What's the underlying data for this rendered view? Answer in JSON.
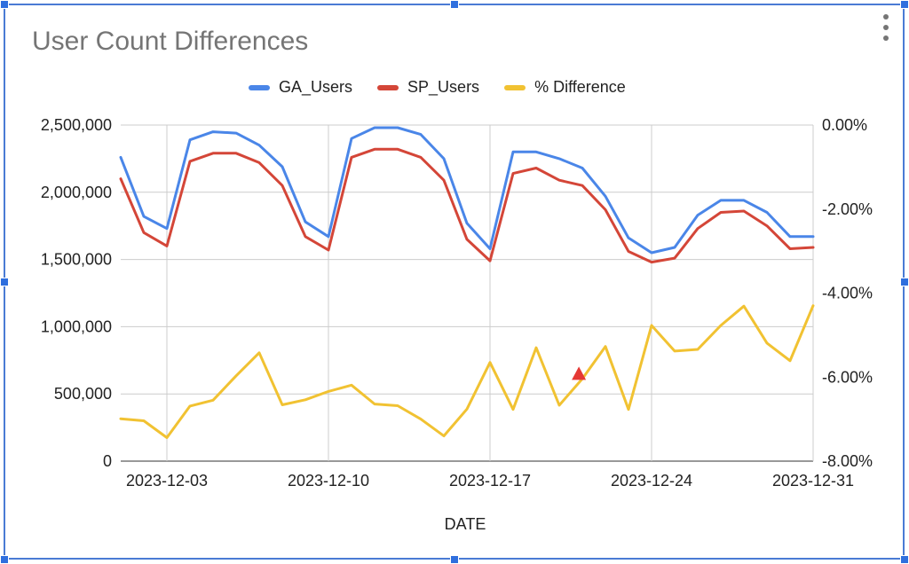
{
  "chart_data": {
    "type": "line",
    "title": "User Count Differences",
    "xlabel": "DATE",
    "ylabel_left": "",
    "ylabel_right": "",
    "ylim": [
      0,
      2500000
    ],
    "y2lim": [
      -8.0,
      0.0
    ],
    "xlim": [
      1,
      31
    ],
    "left_ticks": [
      "0",
      "500,000",
      "1,000,000",
      "1,500,000",
      "2,000,000",
      "2,500,000"
    ],
    "left_tick_values": [
      0,
      500000,
      1000000,
      1500000,
      2000000,
      2500000
    ],
    "right_ticks": [
      "0.00%",
      "-2.00%",
      "-4.00%",
      "-6.00%",
      "-8.00%"
    ],
    "right_tick_values": [
      0,
      -2,
      -4,
      -6,
      -8
    ],
    "x_ticks": [
      {
        "day": 3,
        "label": "2023-12-03"
      },
      {
        "day": 10,
        "label": "2023-12-10"
      },
      {
        "day": 17,
        "label": "2023-12-17"
      },
      {
        "day": 24,
        "label": "2023-12-24"
      },
      {
        "day": 31,
        "label": "2023-12-31"
      }
    ],
    "x": [
      1,
      2,
      3,
      4,
      5,
      6,
      7,
      8,
      9,
      10,
      11,
      12,
      13,
      14,
      15,
      16,
      17,
      18,
      19,
      20,
      21,
      22,
      23,
      24,
      25,
      26,
      27,
      28,
      29,
      30,
      31
    ],
    "series": [
      {
        "name": "GA_Users",
        "axis": "left",
        "color": "#4a86e8",
        "values": [
          2260000,
          1820000,
          1730000,
          2390000,
          2450000,
          2440000,
          2350000,
          2190000,
          1780000,
          1670000,
          2400000,
          2480000,
          2480000,
          2430000,
          2250000,
          1770000,
          1580000,
          2300000,
          2300000,
          2250000,
          2180000,
          1970000,
          1660000,
          1550000,
          1590000,
          1830000,
          1940000,
          1940000,
          1850000,
          1670000,
          1670000
        ]
      },
      {
        "name": "SP_Users",
        "axis": "left",
        "color": "#d44638",
        "values": [
          2100000,
          1700000,
          1600000,
          2230000,
          2290000,
          2290000,
          2220000,
          2050000,
          1670000,
          1570000,
          2260000,
          2320000,
          2320000,
          2260000,
          2090000,
          1650000,
          1490000,
          2140000,
          2180000,
          2090000,
          2050000,
          1870000,
          1560000,
          1480000,
          1510000,
          1730000,
          1850000,
          1860000,
          1750000,
          1580000,
          1590000
        ]
      },
      {
        "name": "% Difference",
        "axis": "right",
        "color": "#f1c232",
        "values": [
          -6.99,
          -7.04,
          -7.44,
          -6.69,
          -6.55,
          -5.97,
          -5.42,
          -6.66,
          -6.54,
          -6.34,
          -6.19,
          -6.64,
          -6.68,
          -7.0,
          -7.4,
          -6.76,
          -5.65,
          -6.77,
          -5.3,
          -6.67,
          -6.04,
          -5.27,
          -6.77,
          -4.77,
          -5.38,
          -5.34,
          -4.77,
          -4.31,
          -5.19,
          -5.61,
          -4.3
        ]
      }
    ],
    "marker": {
      "series": "% Difference",
      "day": 20.85,
      "value": -5.94,
      "color": "#e53935",
      "shape": "triangle"
    }
  },
  "icons": {
    "menu": "more-vert-icon"
  }
}
